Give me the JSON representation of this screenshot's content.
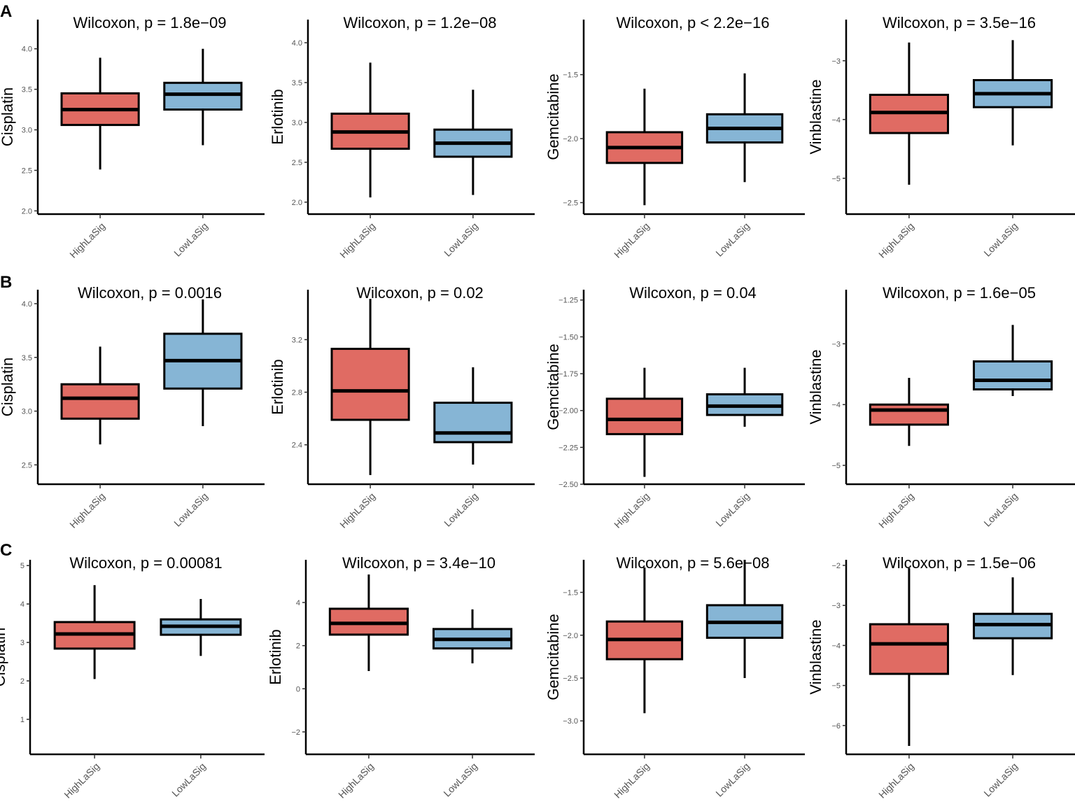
{
  "chart_data": {
    "type": "boxplot",
    "row_labels": [
      "A",
      "B",
      "C"
    ],
    "categories": [
      "HighLaSig",
      "LowLaSig"
    ],
    "colors": {
      "HighLaSig": "#E06B63",
      "LowLaSig": "#86B5D5"
    },
    "panels": [
      {
        "row": "A",
        "title": "Wilcoxon, p = 1.8e−09",
        "ylabel": "Cisplatin",
        "ylim": [
          1.96,
          4.36
        ],
        "yticks": [
          2.0,
          2.5,
          3.0,
          3.5,
          4.0
        ],
        "ytick_labels": [
          "2.0",
          "2.5",
          "3.0",
          "3.5",
          "4.0"
        ],
        "boxes": [
          {
            "min": 2.51,
            "q1": 3.06,
            "median": 3.25,
            "q3": 3.45,
            "max": 3.89
          },
          {
            "min": 2.81,
            "q1": 3.25,
            "median": 3.44,
            "q3": 3.58,
            "max": 4.0
          }
        ]
      },
      {
        "row": "A",
        "title": "Wilcoxon, p = 1.2e−08",
        "ylabel": "Erlotinib",
        "ylim": [
          1.85,
          4.29
        ],
        "yticks": [
          2.0,
          2.5,
          3.0,
          3.5,
          4.0
        ],
        "ytick_labels": [
          "2.0",
          "2.5",
          "3.0",
          "3.5",
          "4.0"
        ],
        "boxes": [
          {
            "min": 2.06,
            "q1": 2.67,
            "median": 2.88,
            "q3": 3.11,
            "max": 3.75
          },
          {
            "min": 2.09,
            "q1": 2.57,
            "median": 2.74,
            "q3": 2.91,
            "max": 3.41
          }
        ]
      },
      {
        "row": "A",
        "title": "Wilcoxon, p < 2.2e−16",
        "ylabel": "Gemcitabine",
        "ylim": [
          -2.59,
          -1.07
        ],
        "yticks": [
          -2.5,
          -2.0,
          -1.5
        ],
        "ytick_labels": [
          "−2.5",
          "−2.0",
          "−1.5"
        ],
        "boxes": [
          {
            "min": -2.52,
            "q1": -2.19,
            "median": -2.07,
            "q3": -1.95,
            "max": -1.61
          },
          {
            "min": -2.34,
            "q1": -2.03,
            "median": -1.92,
            "q3": -1.81,
            "max": -1.49
          }
        ]
      },
      {
        "row": "A",
        "title": "Wilcoxon, p = 3.5e−16",
        "ylabel": "Vinblastine",
        "ylim": [
          -5.61,
          -2.3
        ],
        "yticks": [
          -5,
          -4,
          -3
        ],
        "ytick_labels": [
          "−5",
          "−4",
          "−3"
        ],
        "boxes": [
          {
            "min": -5.11,
            "q1": -4.23,
            "median": -3.88,
            "q3": -3.58,
            "max": -2.69
          },
          {
            "min": -4.44,
            "q1": -3.79,
            "median": -3.56,
            "q3": -3.33,
            "max": -2.65
          }
        ]
      },
      {
        "row": "B",
        "title": "Wilcoxon, p = 0.0016",
        "ylabel": "Cisplatin",
        "ylim": [
          2.32,
          4.13
        ],
        "yticks": [
          2.5,
          3.0,
          3.5,
          4.0
        ],
        "ytick_labels": [
          "2.5",
          "3.0",
          "3.5",
          "4.0"
        ],
        "boxes": [
          {
            "min": 2.69,
            "q1": 2.93,
            "median": 3.12,
            "q3": 3.25,
            "max": 3.6
          },
          {
            "min": 2.86,
            "q1": 3.21,
            "median": 3.47,
            "q3": 3.72,
            "max": 4.04
          }
        ]
      },
      {
        "row": "B",
        "title": "Wilcoxon, p = 0.02",
        "ylabel": "Erlotinib",
        "ylim": [
          2.1,
          3.58
        ],
        "yticks": [
          2.4,
          2.8,
          3.2
        ],
        "ytick_labels": [
          "2.4",
          "2.8",
          "3.2"
        ],
        "boxes": [
          {
            "min": 2.17,
            "q1": 2.59,
            "median": 2.81,
            "q3": 3.13,
            "max": 3.51
          },
          {
            "min": 2.25,
            "q1": 2.42,
            "median": 2.49,
            "q3": 2.72,
            "max": 2.99
          }
        ]
      },
      {
        "row": "B",
        "title": "Wilcoxon, p = 0.04",
        "ylabel": "Gemcitabine",
        "ylim": [
          -2.5,
          -1.18
        ],
        "yticks": [
          -2.5,
          -2.25,
          -2.0,
          -1.75,
          -1.5,
          -1.25
        ],
        "ytick_labels": [
          "−2.50",
          "−2.25",
          "−2.00",
          "−1.75",
          "−1.50",
          "−1.25"
        ],
        "boxes": [
          {
            "min": -2.45,
            "q1": -2.16,
            "median": -2.06,
            "q3": -1.92,
            "max": -1.71
          },
          {
            "min": -2.11,
            "q1": -2.03,
            "median": -1.97,
            "q3": -1.89,
            "max": -1.71
          }
        ]
      },
      {
        "row": "B",
        "title": "Wilcoxon, p = 1.6e−05",
        "ylabel": "Vinblastine",
        "ylim": [
          -5.31,
          -2.11
        ],
        "yticks": [
          -5,
          -4,
          -3
        ],
        "ytick_labels": [
          "−5",
          "−4",
          "−3"
        ],
        "boxes": [
          {
            "min": -4.68,
            "q1": -4.33,
            "median": -4.09,
            "q3": -4.0,
            "max": -3.56
          },
          {
            "min": -3.86,
            "q1": -3.75,
            "median": -3.6,
            "q3": -3.29,
            "max": -2.69
          }
        ]
      },
      {
        "row": "C",
        "title": "Wilcoxon, p = 0.00081",
        "ylabel": "Cisplatin",
        "ylim": [
          0.09,
          5.15
        ],
        "yticks": [
          1,
          2,
          3,
          4,
          5
        ],
        "ytick_labels": [
          "1",
          "2",
          "3",
          "4",
          "5"
        ],
        "boxes": [
          {
            "min": 2.05,
            "q1": 2.84,
            "median": 3.22,
            "q3": 3.53,
            "max": 4.49
          },
          {
            "min": 2.65,
            "q1": 3.2,
            "median": 3.42,
            "q3": 3.6,
            "max": 4.13
          }
        ]
      },
      {
        "row": "C",
        "title": "Wilcoxon, p = 3.4e−10",
        "ylabel": "Erlotinib",
        "ylim": [
          -3.04,
          5.98
        ],
        "yticks": [
          -2,
          0,
          2,
          4
        ],
        "ytick_labels": [
          "−2",
          "0",
          "2",
          "4"
        ],
        "boxes": [
          {
            "min": 0.82,
            "q1": 2.51,
            "median": 3.03,
            "q3": 3.71,
            "max": 5.3
          },
          {
            "min": 1.18,
            "q1": 1.87,
            "median": 2.29,
            "q3": 2.77,
            "max": 3.68
          }
        ]
      },
      {
        "row": "C",
        "title": "Wilcoxon, p = 5.6e−08",
        "ylabel": "Gemcitabine",
        "ylim": [
          -3.39,
          -1.12
        ],
        "yticks": [
          -3.0,
          -2.5,
          -2.0,
          -1.5
        ],
        "ytick_labels": [
          "−3.0",
          "−2.5",
          "−2.0",
          "−1.5"
        ],
        "boxes": [
          {
            "min": -2.91,
            "q1": -2.28,
            "median": -2.05,
            "q3": -1.84,
            "max": -1.21
          },
          {
            "min": -2.5,
            "q1": -2.03,
            "median": -1.85,
            "q3": -1.65,
            "max": -1.12
          }
        ]
      },
      {
        "row": "C",
        "title": "Wilcoxon, p = 1.5e−06",
        "ylabel": "Vinblastine",
        "ylim": [
          -6.72,
          -1.86
        ],
        "yticks": [
          -6,
          -5,
          -4,
          -3,
          -2
        ],
        "ytick_labels": [
          "−6",
          "−5",
          "−4",
          "−3",
          "−2"
        ],
        "boxes": [
          {
            "min": -6.51,
            "q1": -4.71,
            "median": -3.96,
            "q3": -3.47,
            "max": -2.07
          },
          {
            "min": -4.74,
            "q1": -3.82,
            "median": -3.48,
            "q3": -3.21,
            "max": -2.3
          }
        ]
      }
    ]
  }
}
